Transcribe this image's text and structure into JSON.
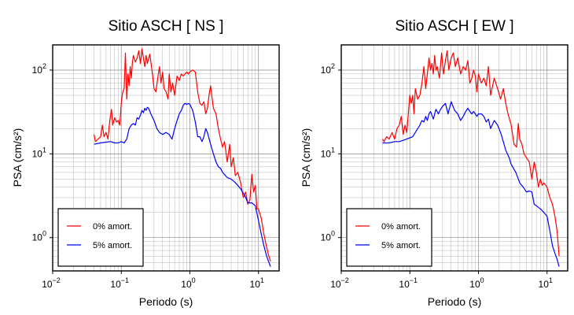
{
  "chart_data": [
    {
      "type": "line",
      "title": "Sitio ASCH [ NS ]",
      "xlabel": "Periodo (s)",
      "ylabel": "PSA (cm/s²)",
      "xscale": "log",
      "yscale": "log",
      "xlim": [
        0.01,
        20
      ],
      "ylim": [
        0.4,
        200
      ],
      "grid": true,
      "legend_position": "bottom-left",
      "xticks": [
        {
          "base": "10",
          "exp": "−2"
        },
        {
          "base": "10",
          "exp": "−1"
        },
        {
          "base": "10",
          "exp": "0"
        },
        {
          "base": "10",
          "exp": "1"
        }
      ],
      "yticks": [
        {
          "base": "10",
          "exp": "0"
        },
        {
          "base": "10",
          "exp": "1"
        },
        {
          "base": "10",
          "exp": "2"
        }
      ],
      "series": [
        {
          "name": "0% amort.",
          "color": "#ff0000",
          "x": [
            0.04,
            0.042,
            0.046,
            0.05,
            0.053,
            0.056,
            0.06,
            0.064,
            0.068,
            0.072,
            0.075,
            0.08,
            0.085,
            0.09,
            0.095,
            0.1,
            0.105,
            0.11,
            0.115,
            0.12,
            0.125,
            0.13,
            0.135,
            0.14,
            0.145,
            0.15,
            0.16,
            0.17,
            0.18,
            0.19,
            0.2,
            0.21,
            0.22,
            0.23,
            0.24,
            0.26,
            0.28,
            0.3,
            0.32,
            0.34,
            0.36,
            0.38,
            0.4,
            0.42,
            0.45,
            0.48,
            0.5,
            0.53,
            0.56,
            0.6,
            0.65,
            0.7,
            0.75,
            0.8,
            0.85,
            0.9,
            0.95,
            1.0,
            1.1,
            1.2,
            1.3,
            1.4,
            1.5,
            1.6,
            1.7,
            1.8,
            1.9,
            2.0,
            2.2,
            2.4,
            2.6,
            2.8,
            3.0,
            3.2,
            3.5,
            3.8,
            4.0,
            4.3,
            4.6,
            5.0,
            5.5,
            6.0,
            6.5,
            7.0,
            7.5,
            8.0,
            8.5,
            9.0,
            9.5,
            10,
            11,
            12,
            13,
            14,
            15
          ],
          "y": [
            17,
            14,
            15,
            16,
            22,
            16,
            18,
            15,
            25,
            34,
            22,
            27,
            24,
            25,
            22,
            40,
            55,
            60,
            160,
            45,
            90,
            65,
            110,
            80,
            120,
            150,
            125,
            140,
            170,
            120,
            180,
            140,
            110,
            150,
            120,
            155,
            100,
            60,
            55,
            80,
            110,
            70,
            95,
            60,
            55,
            45,
            90,
            55,
            70,
            50,
            85,
            75,
            90,
            85,
            90,
            95,
            90,
            95,
            100,
            95,
            55,
            40,
            38,
            42,
            30,
            35,
            50,
            65,
            35,
            30,
            20,
            15,
            12,
            14,
            8,
            13,
            7,
            9,
            5.5,
            6,
            4.5,
            3,
            3.5,
            2.5,
            2.8,
            5.7,
            3.5,
            4.2,
            2.2,
            2.2,
            1.7,
            1.1,
            0.8,
            0.62,
            0.52
          ]
        },
        {
          "name": "5% amort.",
          "color": "#0000ff",
          "x": [
            0.04,
            0.05,
            0.06,
            0.07,
            0.08,
            0.09,
            0.1,
            0.11,
            0.12,
            0.13,
            0.14,
            0.15,
            0.16,
            0.17,
            0.18,
            0.19,
            0.2,
            0.21,
            0.22,
            0.23,
            0.24,
            0.25,
            0.27,
            0.3,
            0.33,
            0.36,
            0.4,
            0.45,
            0.5,
            0.55,
            0.6,
            0.65,
            0.7,
            0.75,
            0.8,
            0.85,
            0.9,
            0.95,
            1.0,
            1.1,
            1.2,
            1.3,
            1.4,
            1.5,
            1.6,
            1.7,
            1.8,
            2.0,
            2.2,
            2.4,
            2.6,
            2.8,
            3.0,
            3.5,
            4.0,
            4.5,
            5.0,
            5.5,
            6.0,
            6.5,
            7.0,
            8.0,
            9.0,
            10,
            11,
            12,
            13,
            14,
            15
          ],
          "y": [
            13,
            13.5,
            13.8,
            14,
            13.5,
            13.5,
            14,
            13.5,
            15,
            20,
            22,
            23,
            22,
            27,
            26,
            29,
            33,
            31,
            35,
            33,
            36,
            35,
            30,
            25,
            20,
            18,
            17,
            18,
            17,
            15,
            20,
            25,
            30,
            33,
            38,
            40,
            39,
            40,
            39,
            33,
            24,
            16,
            16,
            14,
            16,
            20,
            18,
            13,
            10,
            8,
            7,
            6.7,
            6,
            5.2,
            5,
            4.6,
            4.2,
            3.8,
            3.4,
            3,
            2.6,
            2.6,
            2.4,
            1.6,
            1.1,
            0.8,
            0.62,
            0.52,
            0.45
          ]
        }
      ]
    },
    {
      "type": "line",
      "title": "Sitio ASCH [ EW ]",
      "xlabel": "Periodo (s)",
      "ylabel": "PSA (cm/s²)",
      "xscale": "log",
      "yscale": "log",
      "xlim": [
        0.01,
        20
      ],
      "ylim": [
        0.4,
        200
      ],
      "grid": true,
      "legend_position": "bottom-left",
      "xticks": [
        {
          "base": "10",
          "exp": "−2"
        },
        {
          "base": "10",
          "exp": "−1"
        },
        {
          "base": "10",
          "exp": "0"
        },
        {
          "base": "10",
          "exp": "1"
        }
      ],
      "yticks": [
        {
          "base": "10",
          "exp": "0"
        },
        {
          "base": "10",
          "exp": "1"
        },
        {
          "base": "10",
          "exp": "2"
        }
      ],
      "series": [
        {
          "name": "0% amort.",
          "color": "#ff0000",
          "x": [
            0.04,
            0.042,
            0.046,
            0.05,
            0.055,
            0.06,
            0.065,
            0.07,
            0.075,
            0.08,
            0.085,
            0.09,
            0.095,
            0.1,
            0.105,
            0.11,
            0.115,
            0.12,
            0.13,
            0.14,
            0.15,
            0.16,
            0.17,
            0.18,
            0.19,
            0.2,
            0.21,
            0.22,
            0.23,
            0.24,
            0.25,
            0.27,
            0.29,
            0.31,
            0.33,
            0.35,
            0.37,
            0.4,
            0.43,
            0.46,
            0.5,
            0.55,
            0.6,
            0.65,
            0.7,
            0.75,
            0.8,
            0.85,
            0.9,
            0.95,
            1.0,
            1.1,
            1.2,
            1.3,
            1.4,
            1.5,
            1.7,
            1.9,
            2.1,
            2.3,
            2.5,
            2.7,
            3.0,
            3.3,
            3.6,
            3.8,
            4.0,
            4.3,
            4.6,
            5.0,
            5.5,
            6.0,
            6.5,
            7.0,
            7.5,
            8.0,
            8.5,
            9.0,
            10,
            11,
            12,
            13,
            14,
            15
          ],
          "y": [
            15,
            14,
            16,
            15,
            18,
            15,
            20,
            22,
            28,
            17,
            22,
            18,
            30,
            50,
            40,
            50,
            30,
            60,
            45,
            50,
            70,
            110,
            60,
            90,
            140,
            100,
            120,
            90,
            150,
            100,
            110,
            80,
            160,
            90,
            130,
            170,
            100,
            140,
            160,
            110,
            140,
            90,
            110,
            100,
            130,
            70,
            80,
            100,
            85,
            55,
            90,
            70,
            80,
            65,
            110,
            50,
            80,
            60,
            45,
            60,
            40,
            30,
            22,
            13,
            12,
            23,
            15,
            13,
            10,
            9,
            8,
            5,
            8,
            6,
            4,
            5,
            4.2,
            4.5,
            4,
            3,
            2.5,
            1.8,
            1.2,
            0.6
          ]
        },
        {
          "name": "5% amort.",
          "color": "#0000ff",
          "x": [
            0.04,
            0.05,
            0.06,
            0.07,
            0.08,
            0.09,
            0.1,
            0.11,
            0.12,
            0.13,
            0.14,
            0.15,
            0.16,
            0.17,
            0.18,
            0.19,
            0.2,
            0.22,
            0.24,
            0.26,
            0.28,
            0.3,
            0.33,
            0.36,
            0.4,
            0.45,
            0.5,
            0.55,
            0.6,
            0.65,
            0.7,
            0.75,
            0.8,
            0.85,
            0.9,
            0.95,
            1.0,
            1.1,
            1.2,
            1.3,
            1.4,
            1.5,
            1.7,
            1.9,
            2.1,
            2.3,
            2.5,
            2.8,
            3.0,
            3.5,
            4.0,
            4.5,
            5.0,
            5.5,
            6.0,
            6.5,
            7.0,
            8.0,
            9.0,
            10,
            11,
            12,
            13,
            14,
            15
          ],
          "y": [
            13.5,
            13.5,
            14,
            14,
            14.5,
            15,
            15.5,
            16,
            18,
            20,
            22,
            25,
            24,
            28,
            25,
            30,
            32,
            26,
            34,
            30,
            34,
            37,
            40,
            30,
            42,
            33,
            30,
            25,
            28,
            32,
            35,
            32,
            30,
            32,
            30,
            28,
            30,
            30,
            28,
            24,
            26,
            20,
            25,
            22,
            18,
            14,
            11,
            9,
            7.5,
            6,
            4.5,
            4,
            3.5,
            3.6,
            3.5,
            2.5,
            2.4,
            2.2,
            2,
            1.8,
            1.2,
            0.8,
            0.65,
            0.55,
            0.45
          ]
        }
      ]
    }
  ]
}
